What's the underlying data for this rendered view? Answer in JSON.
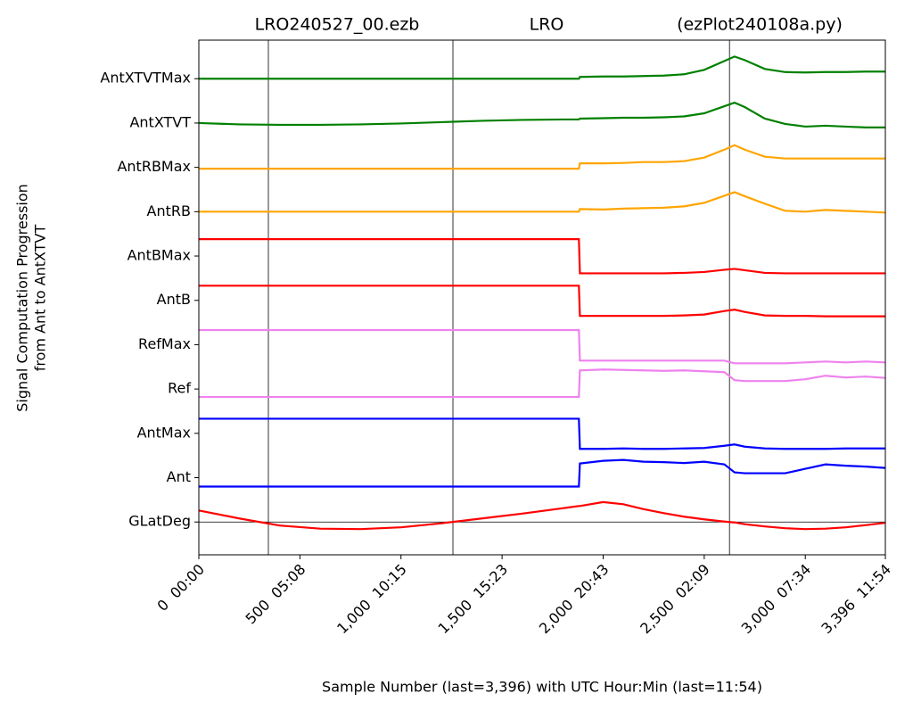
{
  "chart_data": {
    "type": "line",
    "title_left": "LRO240527_00.ezb",
    "title": "LRO",
    "title_right": "(ezPlot240108a.py)",
    "ylabel": [
      "Signal Computation Progression",
      "from Ant to AntXTVT"
    ],
    "xlabel": "Sample Number (last=3,396) with UTC Hour:Min (last=11:54)",
    "x": [
      0,
      200,
      400,
      600,
      800,
      1000,
      1200,
      1400,
      1600,
      1800,
      1880,
      1885,
      2000,
      2100,
      2200,
      2300,
      2400,
      2500,
      2600,
      2650,
      2700,
      2800,
      2900,
      3000,
      3100,
      3200,
      3300,
      3396
    ],
    "xlim": [
      0,
      3396
    ],
    "xticks": [
      {
        "value": 0,
        "label": "0  00:00"
      },
      {
        "value": 500,
        "label": "500  05:08"
      },
      {
        "value": 1000,
        "label": "1,000  10:15"
      },
      {
        "value": 1500,
        "label": "1,500  15:23"
      },
      {
        "value": 2000,
        "label": "2,000  20:43"
      },
      {
        "value": 2500,
        "label": "2,500  02:09"
      },
      {
        "value": 3000,
        "label": "3,000  07:34"
      },
      {
        "value": 3396,
        "label": "3,396  11:54"
      }
    ],
    "ylim": [
      -0.74,
      10.87
    ],
    "yticks": [
      {
        "value": 0,
        "label": "GLatDeg"
      },
      {
        "value": 1,
        "label": "Ant"
      },
      {
        "value": 2,
        "label": "AntMax"
      },
      {
        "value": 3,
        "label": "Ref"
      },
      {
        "value": 4,
        "label": "RefMax"
      },
      {
        "value": 5,
        "label": "AntB"
      },
      {
        "value": 6,
        "label": "AntBMax"
      },
      {
        "value": 7,
        "label": "AntRB"
      },
      {
        "value": 8,
        "label": "AntRBMax"
      },
      {
        "value": 9,
        "label": "AntXTVT"
      },
      {
        "value": 10,
        "label": "AntXTVTMax"
      }
    ],
    "vlines": [
      344,
      1257,
      2625
    ],
    "hlines": [
      0
    ],
    "series": [
      {
        "color": "#ff0000",
        "values": [
          0.26,
          0.08,
          -0.08,
          -0.15,
          -0.16,
          -0.12,
          -0.03,
          0.08,
          0.19,
          0.31,
          0.36,
          0.36,
          0.45,
          0.4,
          0.29,
          0.2,
          0.12,
          0.06,
          0.01,
          -0.01,
          -0.05,
          -0.1,
          -0.14,
          -0.16,
          -0.15,
          -0.12,
          -0.07,
          -0.02
        ]
      },
      {
        "color": "#0000ff",
        "values": [
          0.8,
          0.8,
          0.8,
          0.8,
          0.8,
          0.8,
          0.8,
          0.8,
          0.8,
          0.8,
          0.8,
          1.32,
          1.38,
          1.4,
          1.36,
          1.35,
          1.33,
          1.36,
          1.3,
          1.12,
          1.1,
          1.1,
          1.1,
          1.2,
          1.3,
          1.27,
          1.25,
          1.22
        ]
      },
      {
        "color": "#0000ff",
        "values": [
          2.33,
          2.33,
          2.33,
          2.33,
          2.33,
          2.33,
          2.33,
          2.33,
          2.33,
          2.33,
          2.33,
          1.65,
          1.65,
          1.66,
          1.65,
          1.65,
          1.66,
          1.67,
          1.72,
          1.75,
          1.7,
          1.66,
          1.65,
          1.65,
          1.65,
          1.66,
          1.66,
          1.66
        ]
      },
      {
        "color": "#ee82ee",
        "values": [
          2.82,
          2.82,
          2.82,
          2.82,
          2.82,
          2.82,
          2.82,
          2.82,
          2.82,
          2.82,
          2.82,
          3.42,
          3.44,
          3.43,
          3.42,
          3.41,
          3.42,
          3.4,
          3.38,
          3.2,
          3.18,
          3.18,
          3.18,
          3.22,
          3.3,
          3.26,
          3.28,
          3.25
        ]
      },
      {
        "color": "#ee82ee",
        "values": [
          4.33,
          4.33,
          4.33,
          4.33,
          4.33,
          4.33,
          4.33,
          4.33,
          4.33,
          4.33,
          4.33,
          3.64,
          3.64,
          3.64,
          3.64,
          3.64,
          3.64,
          3.64,
          3.64,
          3.58,
          3.58,
          3.58,
          3.58,
          3.6,
          3.62,
          3.6,
          3.62,
          3.6
        ]
      },
      {
        "color": "#ff0000",
        "values": [
          5.33,
          5.33,
          5.33,
          5.33,
          5.33,
          5.33,
          5.33,
          5.33,
          5.33,
          5.33,
          5.33,
          4.65,
          4.65,
          4.65,
          4.65,
          4.65,
          4.66,
          4.68,
          4.76,
          4.79,
          4.74,
          4.66,
          4.65,
          4.65,
          4.64,
          4.64,
          4.64,
          4.64
        ]
      },
      {
        "color": "#ff0000",
        "values": [
          6.38,
          6.38,
          6.38,
          6.38,
          6.38,
          6.38,
          6.38,
          6.38,
          6.38,
          6.38,
          6.38,
          5.61,
          5.61,
          5.61,
          5.61,
          5.61,
          5.62,
          5.64,
          5.69,
          5.71,
          5.68,
          5.62,
          5.61,
          5.61,
          5.61,
          5.61,
          5.61,
          5.61
        ]
      },
      {
        "color": "#ffa500",
        "values": [
          7.0,
          7.0,
          7.0,
          7.0,
          7.0,
          7.0,
          7.0,
          7.0,
          7.0,
          7.0,
          7.0,
          7.06,
          7.05,
          7.07,
          7.08,
          7.09,
          7.12,
          7.2,
          7.36,
          7.44,
          7.35,
          7.18,
          7.02,
          7.0,
          7.04,
          7.02,
          7.0,
          6.98
        ]
      },
      {
        "color": "#ffa500",
        "values": [
          7.97,
          7.97,
          7.97,
          7.97,
          7.97,
          7.97,
          7.97,
          7.97,
          7.97,
          7.97,
          7.97,
          8.09,
          8.09,
          8.1,
          8.12,
          8.12,
          8.14,
          8.22,
          8.4,
          8.5,
          8.4,
          8.24,
          8.2,
          8.2,
          8.2,
          8.2,
          8.2,
          8.2
        ]
      },
      {
        "color": "#008000",
        "values": [
          9.0,
          8.97,
          8.96,
          8.96,
          8.97,
          8.99,
          9.02,
          9.05,
          9.07,
          9.08,
          9.08,
          9.1,
          9.11,
          9.12,
          9.12,
          9.13,
          9.15,
          9.22,
          9.38,
          9.46,
          9.36,
          9.1,
          8.98,
          8.92,
          8.94,
          8.92,
          8.9,
          8.9
        ]
      },
      {
        "color": "#008000",
        "values": [
          10.0,
          10.0,
          10.0,
          10.0,
          10.0,
          10.0,
          10.0,
          10.0,
          10.0,
          10.0,
          10.0,
          10.04,
          10.05,
          10.05,
          10.06,
          10.07,
          10.1,
          10.2,
          10.4,
          10.5,
          10.42,
          10.22,
          10.15,
          10.14,
          10.15,
          10.15,
          10.16,
          10.16
        ]
      }
    ]
  }
}
